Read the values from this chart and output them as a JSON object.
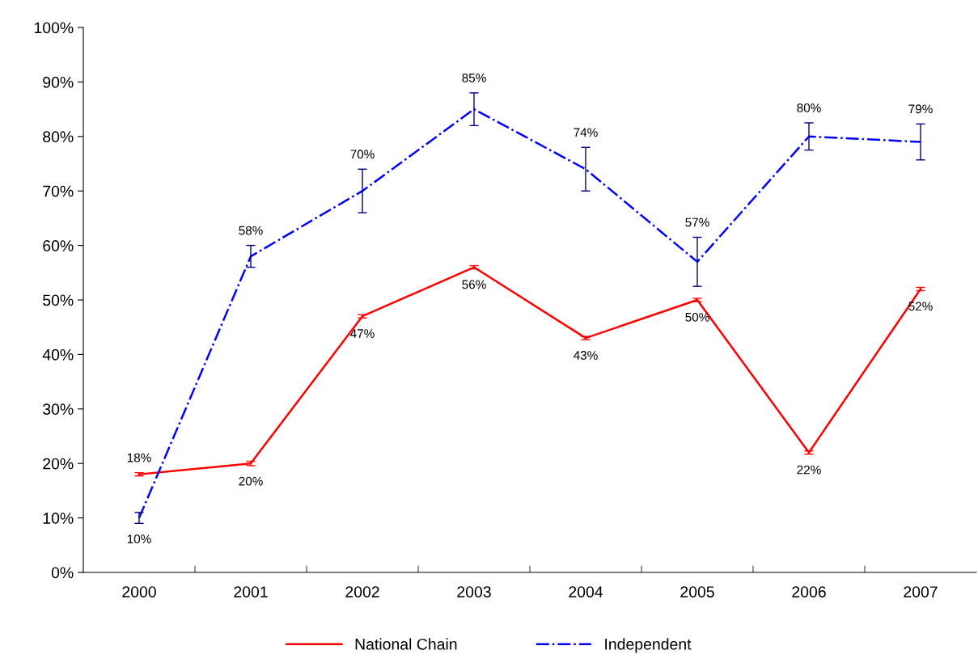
{
  "chart_data": {
    "type": "line",
    "categories": [
      "2000",
      "2001",
      "2002",
      "2003",
      "2004",
      "2005",
      "2006",
      "2007"
    ],
    "series": [
      {
        "name": "National Chain",
        "color": "#ff0000",
        "line_style": "solid",
        "values": [
          18,
          20,
          47,
          56,
          43,
          50,
          22,
          52
        ],
        "errors": [
          0.3,
          0.4,
          0.3,
          0.3,
          0.3,
          0.3,
          0.3,
          0.3
        ],
        "value_labels": [
          "18%",
          "20%",
          "47%",
          "56%",
          "43%",
          "50%",
          "22%",
          "52%"
        ]
      },
      {
        "name": "Independent",
        "color": "#0000ff",
        "line_style": "dashdot",
        "values": [
          10,
          58,
          70,
          85,
          74,
          57,
          80,
          79
        ],
        "errors": [
          1,
          2,
          4,
          3,
          4,
          4.5,
          2.5,
          3.3
        ],
        "value_labels": [
          "10%",
          "58%",
          "70%",
          "85%",
          "74%",
          "57%",
          "80%",
          "79%"
        ]
      }
    ],
    "ylim": [
      0,
      100
    ],
    "yticks": [
      {
        "value": 0,
        "label": "0%"
      },
      {
        "value": 10,
        "label": "10%"
      },
      {
        "value": 20,
        "label": "20%"
      },
      {
        "value": 30,
        "label": "30%"
      },
      {
        "value": 40,
        "label": "40%"
      },
      {
        "value": 50,
        "label": "50%"
      },
      {
        "value": 60,
        "label": "60%"
      },
      {
        "value": 70,
        "label": "70%"
      },
      {
        "value": 80,
        "label": "80%"
      },
      {
        "value": 90,
        "label": "90%"
      },
      {
        "value": 100,
        "label": "100%"
      }
    ],
    "grid": false,
    "legend": "bottom",
    "marker": "none"
  }
}
